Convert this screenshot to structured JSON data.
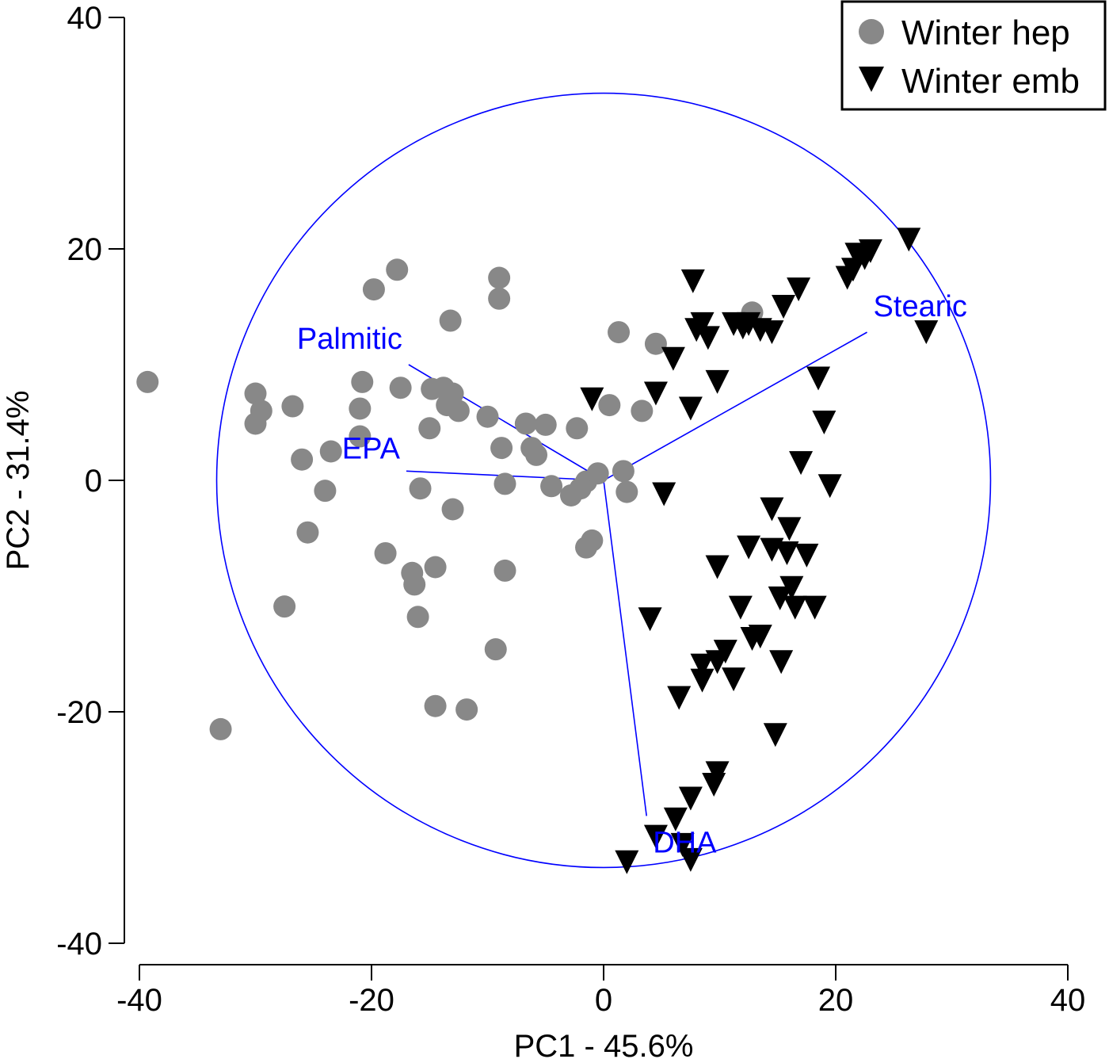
{
  "chart_data": {
    "type": "scatter",
    "xlabel": "PC1 - 45.6%",
    "ylabel": "PC2 - 31.4%",
    "xlim": [
      -40,
      40
    ],
    "ylim": [
      -40,
      40
    ],
    "xticks": [
      -40,
      -20,
      0,
      20,
      40
    ],
    "yticks": [
      40,
      20,
      0,
      -20,
      -40
    ],
    "legend_position": "top-right",
    "correlation_circle": {
      "center": [
        0,
        0
      ],
      "radius": 33.4,
      "color": "#0000ff"
    },
    "loadings": [
      {
        "name": "Palmitic",
        "x": -16.8,
        "y": 10.0
      },
      {
        "name": "EPA",
        "x": -17.0,
        "y": 0.8
      },
      {
        "name": "Stearic",
        "x": 22.7,
        "y": 12.8
      },
      {
        "name": "DHA",
        "x": 3.7,
        "y": -29.0
      }
    ],
    "series": [
      {
        "name": "Winter hep",
        "marker": "circle",
        "color": "#888888",
        "points": [
          [
            -39.3,
            8.5
          ],
          [
            -33.0,
            -21.5
          ],
          [
            -30.0,
            7.5
          ],
          [
            -29.5,
            6.0
          ],
          [
            -30.0,
            4.9
          ],
          [
            -26.8,
            6.4
          ],
          [
            -26.0,
            1.8
          ],
          [
            -25.5,
            -4.5
          ],
          [
            -24.0,
            -0.9
          ],
          [
            -23.5,
            2.5
          ],
          [
            -27.5,
            -10.9
          ],
          [
            -21.0,
            3.8
          ],
          [
            -20.8,
            8.5
          ],
          [
            -21.0,
            6.2
          ],
          [
            -19.8,
            16.5
          ],
          [
            -17.8,
            18.2
          ],
          [
            -17.5,
            8.0
          ],
          [
            -16.5,
            -8.0
          ],
          [
            -16.3,
            -9.0
          ],
          [
            -16.0,
            -11.8
          ],
          [
            -18.8,
            -6.3
          ],
          [
            -15.8,
            -0.7
          ],
          [
            -15.0,
            4.5
          ],
          [
            -14.8,
            7.9
          ],
          [
            -14.5,
            -7.5
          ],
          [
            -14.5,
            -19.5
          ],
          [
            -13.8,
            8.0
          ],
          [
            -13.5,
            6.5
          ],
          [
            -13.2,
            13.8
          ],
          [
            -13.0,
            -2.5
          ],
          [
            -13.0,
            7.5
          ],
          [
            -12.5,
            6.0
          ],
          [
            -11.8,
            -19.8
          ],
          [
            -10.0,
            5.5
          ],
          [
            -9.3,
            -14.6
          ],
          [
            -9.0,
            17.5
          ],
          [
            -9.0,
            15.7
          ],
          [
            -8.8,
            2.8
          ],
          [
            -8.5,
            -7.8
          ],
          [
            -8.5,
            -0.3
          ],
          [
            -6.7,
            4.9
          ],
          [
            -6.2,
            2.8
          ],
          [
            -5.8,
            2.2
          ],
          [
            -5.0,
            4.8
          ],
          [
            -4.5,
            -0.5
          ],
          [
            -2.8,
            -1.3
          ],
          [
            -2.3,
            4.5
          ],
          [
            -2.0,
            -0.7
          ],
          [
            -1.5,
            -5.8
          ],
          [
            -1.0,
            -5.2
          ],
          [
            -1.5,
            -0.1
          ],
          [
            -0.5,
            0.6
          ],
          [
            0.5,
            6.5
          ],
          [
            1.3,
            12.8
          ],
          [
            1.7,
            0.8
          ],
          [
            2.0,
            -1.0
          ],
          [
            3.3,
            6.0
          ],
          [
            4.5,
            11.8
          ],
          [
            12.8,
            14.5
          ]
        ]
      },
      {
        "name": "Winter emb",
        "marker": "triangle-down",
        "color": "#000000",
        "points": [
          [
            26.3,
            20.8
          ],
          [
            23.0,
            19.8
          ],
          [
            22.5,
            19.2
          ],
          [
            21.8,
            19.5
          ],
          [
            21.5,
            18.2
          ],
          [
            21.0,
            17.5
          ],
          [
            16.8,
            16.5
          ],
          [
            15.5,
            15.0
          ],
          [
            7.7,
            17.2
          ],
          [
            8.0,
            13.0
          ],
          [
            8.5,
            13.5
          ],
          [
            9.0,
            12.3
          ],
          [
            11.2,
            13.5
          ],
          [
            12.0,
            13.2
          ],
          [
            12.5,
            13.5
          ],
          [
            13.5,
            13.0
          ],
          [
            14.5,
            12.8
          ],
          [
            6.0,
            10.5
          ],
          [
            9.8,
            8.5
          ],
          [
            7.5,
            6.2
          ],
          [
            4.5,
            7.5
          ],
          [
            -1.0,
            7.0
          ],
          [
            27.8,
            12.8
          ],
          [
            18.5,
            8.8
          ],
          [
            19.0,
            5.0
          ],
          [
            17.0,
            1.5
          ],
          [
            19.5,
            -0.5
          ],
          [
            5.2,
            -1.2
          ],
          [
            14.5,
            -2.5
          ],
          [
            16.0,
            -4.2
          ],
          [
            12.5,
            -5.8
          ],
          [
            14.5,
            -6.0
          ],
          [
            15.8,
            -6.3
          ],
          [
            17.5,
            -6.5
          ],
          [
            9.8,
            -7.5
          ],
          [
            16.2,
            -9.3
          ],
          [
            15.2,
            -10.2
          ],
          [
            16.5,
            -11.0
          ],
          [
            18.2,
            -11.0
          ],
          [
            11.8,
            -11.0
          ],
          [
            4.0,
            -12.0
          ],
          [
            13.5,
            -13.5
          ],
          [
            12.8,
            -13.7
          ],
          [
            10.5,
            -14.8
          ],
          [
            9.8,
            -15.7
          ],
          [
            8.5,
            -16.0
          ],
          [
            15.3,
            -15.7
          ],
          [
            11.2,
            -17.2
          ],
          [
            8.5,
            -17.3
          ],
          [
            6.5,
            -18.8
          ],
          [
            14.8,
            -22.0
          ],
          [
            9.8,
            -25.3
          ],
          [
            9.5,
            -26.3
          ],
          [
            7.5,
            -27.5
          ],
          [
            6.2,
            -29.3
          ],
          [
            4.5,
            -30.8
          ],
          [
            2.0,
            -33.0
          ],
          [
            7.5,
            -32.8
          ],
          [
            6.8,
            -31.5
          ]
        ]
      }
    ]
  }
}
